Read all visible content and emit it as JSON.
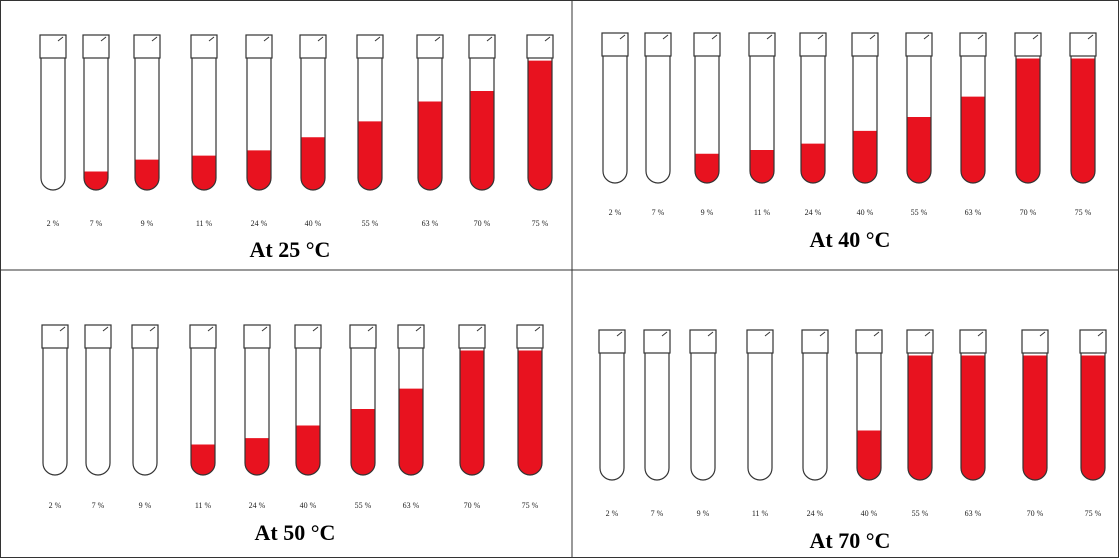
{
  "panels": [
    {
      "title": "At 25 °C",
      "tubes": [
        {
          "label": "2 %",
          "fill": 0
        },
        {
          "label": "7 %",
          "fill": 0.14
        },
        {
          "label": "9 %",
          "fill": 0.23
        },
        {
          "label": "11 %",
          "fill": 0.26
        },
        {
          "label": "24 %",
          "fill": 0.3
        },
        {
          "label": "40 %",
          "fill": 0.4
        },
        {
          "label": "55 %",
          "fill": 0.52
        },
        {
          "label": "63 %",
          "fill": 0.67
        },
        {
          "label": "70 %",
          "fill": 0.75
        },
        {
          "label": "75 %",
          "fill": 0.98
        }
      ]
    },
    {
      "title": "At 40 °C",
      "tubes": [
        {
          "label": "2 %",
          "fill": 0
        },
        {
          "label": "7 %",
          "fill": 0
        },
        {
          "label": "9 %",
          "fill": 0.23
        },
        {
          "label": "11 %",
          "fill": 0.26
        },
        {
          "label": "24 %",
          "fill": 0.31
        },
        {
          "label": "40 %",
          "fill": 0.41
        },
        {
          "label": "55 %",
          "fill": 0.52
        },
        {
          "label": "63 %",
          "fill": 0.68
        },
        {
          "label": "70 %",
          "fill": 0.98
        },
        {
          "label": "75 %",
          "fill": 0.98
        }
      ]
    },
    {
      "title": "At 50 °C",
      "tubes": [
        {
          "label": "2 %",
          "fill": 0
        },
        {
          "label": "7 %",
          "fill": 0
        },
        {
          "label": "9 %",
          "fill": 0
        },
        {
          "label": "11 %",
          "fill": 0.24
        },
        {
          "label": "24 %",
          "fill": 0.29
        },
        {
          "label": "40 %",
          "fill": 0.39
        },
        {
          "label": "55 %",
          "fill": 0.52
        },
        {
          "label": "63 %",
          "fill": 0.68
        },
        {
          "label": "70 %",
          "fill": 0.98
        },
        {
          "label": "75 %",
          "fill": 0.98
        }
      ]
    },
    {
      "title": "At 70 °C",
      "tubes": [
        {
          "label": "2 %",
          "fill": 0
        },
        {
          "label": "7 %",
          "fill": 0
        },
        {
          "label": "9 %",
          "fill": 0
        },
        {
          "label": "11 %",
          "fill": 0
        },
        {
          "label": "24 %",
          "fill": 0
        },
        {
          "label": "40 %",
          "fill": 0.39
        },
        {
          "label": "55 %",
          "fill": 0.98
        },
        {
          "label": "63 %",
          "fill": 0.98
        },
        {
          "label": "70 %",
          "fill": 0.98
        },
        {
          "label": "75 %",
          "fill": 0.98
        }
      ]
    }
  ]
}
